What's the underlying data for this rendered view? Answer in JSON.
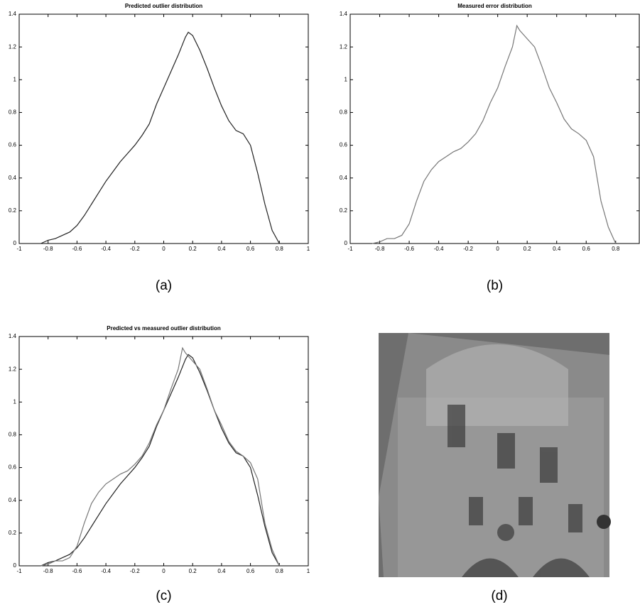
{
  "chart_data": [
    {
      "type": "line",
      "title": "Predicted outlier distribution",
      "caption": "(a)",
      "xlim": [
        -1,
        1
      ],
      "ylim": [
        0,
        1.4
      ],
      "xticks": [
        -1,
        -0.8,
        -0.6,
        -0.4,
        -0.2,
        0,
        0.2,
        0.4,
        0.6,
        0.8,
        1
      ],
      "yticks": [
        0,
        0.2,
        0.4,
        0.6,
        0.8,
        1,
        1.2,
        1.4
      ],
      "series": [
        {
          "color": "#222222",
          "x": [
            -0.85,
            -0.8,
            -0.75,
            -0.7,
            -0.65,
            -0.6,
            -0.55,
            -0.5,
            -0.45,
            -0.4,
            -0.35,
            -0.3,
            -0.25,
            -0.2,
            -0.15,
            -0.1,
            -0.05,
            0,
            0.05,
            0.1,
            0.15,
            0.17,
            0.2,
            0.25,
            0.3,
            0.35,
            0.4,
            0.45,
            0.5,
            0.55,
            0.6,
            0.65,
            0.7,
            0.75,
            0.8
          ],
          "values": [
            0,
            0.02,
            0.03,
            0.05,
            0.07,
            0.11,
            0.17,
            0.24,
            0.31,
            0.38,
            0.44,
            0.5,
            0.55,
            0.6,
            0.66,
            0.73,
            0.85,
            0.95,
            1.05,
            1.15,
            1.26,
            1.29,
            1.27,
            1.18,
            1.07,
            0.95,
            0.84,
            0.75,
            0.69,
            0.67,
            0.6,
            0.43,
            0.24,
            0.08,
            0
          ]
        }
      ]
    },
    {
      "type": "line",
      "title": "Measured error distribution",
      "caption": "(b)",
      "xlim": [
        -1,
        0.96
      ],
      "ylim": [
        0,
        1.4
      ],
      "xticks": [
        -1,
        -0.8,
        -0.6,
        -0.4,
        -0.2,
        0,
        0.2,
        0.4,
        0.6,
        0.8
      ],
      "yticks": [
        0,
        0.2,
        0.4,
        0.6,
        0.8,
        1,
        1.2,
        1.4
      ],
      "series": [
        {
          "color": "#777777",
          "x": [
            -0.85,
            -0.8,
            -0.75,
            -0.7,
            -0.65,
            -0.6,
            -0.55,
            -0.5,
            -0.45,
            -0.4,
            -0.35,
            -0.3,
            -0.25,
            -0.2,
            -0.15,
            -0.1,
            -0.05,
            0,
            0.05,
            0.1,
            0.13,
            0.15,
            0.2,
            0.25,
            0.3,
            0.35,
            0.4,
            0.45,
            0.5,
            0.55,
            0.6,
            0.65,
            0.7,
            0.75,
            0.8
          ],
          "values": [
            0,
            0.01,
            0.03,
            0.03,
            0.05,
            0.12,
            0.26,
            0.38,
            0.45,
            0.5,
            0.53,
            0.56,
            0.58,
            0.62,
            0.67,
            0.75,
            0.86,
            0.95,
            1.08,
            1.2,
            1.33,
            1.3,
            1.25,
            1.2,
            1.08,
            0.95,
            0.86,
            0.76,
            0.7,
            0.67,
            0.63,
            0.53,
            0.26,
            0.1,
            0
          ]
        }
      ]
    },
    {
      "type": "line",
      "title": "Predicted vs measured outlier distribution",
      "caption": "(c)",
      "xlim": [
        -1,
        1
      ],
      "ylim": [
        0,
        1.4
      ],
      "xticks": [
        -1,
        -0.8,
        -0.6,
        -0.4,
        -0.2,
        0,
        0.2,
        0.4,
        0.6,
        0.8,
        1
      ],
      "yticks": [
        0,
        0.2,
        0.4,
        0.6,
        0.8,
        1,
        1.2,
        1.4
      ],
      "series": [
        {
          "color": "#222222",
          "x": [
            -0.85,
            -0.8,
            -0.75,
            -0.7,
            -0.65,
            -0.6,
            -0.55,
            -0.5,
            -0.45,
            -0.4,
            -0.35,
            -0.3,
            -0.25,
            -0.2,
            -0.15,
            -0.1,
            -0.05,
            0,
            0.05,
            0.1,
            0.15,
            0.17,
            0.2,
            0.25,
            0.3,
            0.35,
            0.4,
            0.45,
            0.5,
            0.55,
            0.6,
            0.65,
            0.7,
            0.75,
            0.8
          ],
          "values": [
            0,
            0.02,
            0.03,
            0.05,
            0.07,
            0.11,
            0.17,
            0.24,
            0.31,
            0.38,
            0.44,
            0.5,
            0.55,
            0.6,
            0.66,
            0.73,
            0.85,
            0.95,
            1.05,
            1.15,
            1.26,
            1.29,
            1.27,
            1.18,
            1.07,
            0.95,
            0.84,
            0.75,
            0.69,
            0.67,
            0.6,
            0.43,
            0.24,
            0.08,
            0
          ]
        },
        {
          "color": "#777777",
          "x": [
            -0.85,
            -0.8,
            -0.75,
            -0.7,
            -0.65,
            -0.6,
            -0.55,
            -0.5,
            -0.45,
            -0.4,
            -0.35,
            -0.3,
            -0.25,
            -0.2,
            -0.15,
            -0.1,
            -0.05,
            0,
            0.05,
            0.1,
            0.13,
            0.15,
            0.2,
            0.25,
            0.3,
            0.35,
            0.4,
            0.45,
            0.5,
            0.55,
            0.6,
            0.65,
            0.7,
            0.75,
            0.8
          ],
          "values": [
            0,
            0.01,
            0.03,
            0.03,
            0.05,
            0.12,
            0.26,
            0.38,
            0.45,
            0.5,
            0.53,
            0.56,
            0.58,
            0.62,
            0.67,
            0.75,
            0.86,
            0.95,
            1.08,
            1.2,
            1.33,
            1.3,
            1.25,
            1.2,
            1.08,
            0.95,
            0.86,
            0.76,
            0.7,
            0.67,
            0.63,
            0.53,
            0.26,
            0.1,
            0
          ]
        }
      ]
    }
  ],
  "panel_d": {
    "caption": "(d)"
  }
}
